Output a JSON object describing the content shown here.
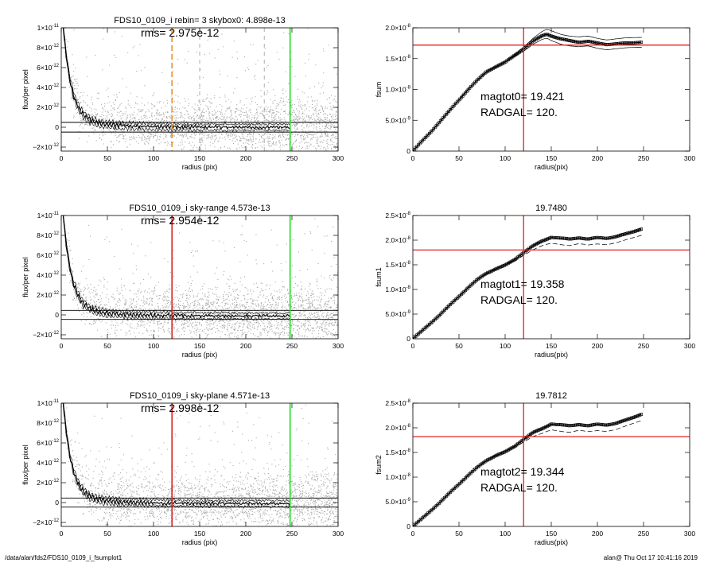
{
  "footer": {
    "left": "/data/alan/fds2/FDS10_0109_i_fsumplot1",
    "right": "alan@  Thu Oct 17 10:41:16 2019"
  },
  "colors": {
    "scatter": "#aaaaaa",
    "vline_orange": "#e8902a",
    "vline_red": "#dd2222",
    "vline_green": "#22dd22",
    "hline_red": "#dd2222",
    "gray_dashed": "#999999"
  },
  "chart_data": [
    {
      "id": "profile1",
      "type": "scatter",
      "title": "FDS10_0109_i rebin= 3    skybox0:  4.898e-13",
      "annotation": "rms= 2.975e-12",
      "xlabel": "radius (pix)",
      "ylabel": "flux/per pixel",
      "xlim": [
        0,
        300
      ],
      "ylim": [
        -2.4e-12,
        1e-11
      ],
      "xticks": [
        0,
        50,
        100,
        150,
        200,
        250,
        300
      ],
      "yticks": [
        {
          "v": 1e-11,
          "label": "1×10",
          "exp": "-11"
        },
        {
          "v": 8e-12,
          "label": "8×10",
          "exp": "-12"
        },
        {
          "v": 6e-12,
          "label": "6×10",
          "exp": "-12"
        },
        {
          "v": 4e-12,
          "label": "4×10",
          "exp": "-12"
        },
        {
          "v": 2e-12,
          "label": "2×10",
          "exp": "-12"
        },
        {
          "v": 0,
          "label": "0",
          "exp": ""
        },
        {
          "v": -2e-12,
          "label": "−2×10",
          "exp": "-12"
        }
      ],
      "vlines": [
        {
          "x": 120,
          "color": "#e8902a",
          "dash": true
        },
        {
          "x": 150,
          "color": "#999999",
          "dash": true,
          "thin": true
        },
        {
          "x": 220,
          "color": "#999999",
          "dash": true,
          "thin": true
        },
        {
          "x": 248,
          "color": "#22dd22",
          "dash": false
        }
      ],
      "hlines": [
        {
          "y": 4.898e-13,
          "color": "#000000"
        },
        {
          "y": -4.898e-13,
          "color": "#000000"
        }
      ]
    },
    {
      "id": "growth0",
      "type": "line",
      "title": "",
      "annotation_lines": [
        "magtot0=  19.421",
        "RADGAL=    120."
      ],
      "xlabel": "radius(pix)",
      "ylabel": "fsum",
      "xlim": [
        0,
        300
      ],
      "ylim": [
        0,
        2e-08
      ],
      "xticks": [
        0,
        50,
        100,
        150,
        200,
        250,
        300
      ],
      "yticks": [
        {
          "v": 2e-08,
          "label": "2.0×10",
          "exp": "-8"
        },
        {
          "v": 1.5e-08,
          "label": "1.5×10",
          "exp": "-8"
        },
        {
          "v": 1e-08,
          "label": "1.0×10",
          "exp": "-8"
        },
        {
          "v": 5e-09,
          "label": "5.0×10",
          "exp": "-9"
        },
        {
          "v": 0,
          "label": "0",
          "exp": ""
        }
      ],
      "series": [
        {
          "x": [
            0,
            10,
            20,
            30,
            40,
            50,
            60,
            70,
            80,
            90,
            100,
            110,
            120,
            130,
            140,
            145,
            150,
            160,
            170,
            180,
            190,
            200,
            210,
            220,
            230,
            240,
            248
          ],
          "values": [
            0,
            1.6e-09,
            3.2e-09,
            4.9e-09,
            6.6e-09,
            8.3e-09,
            1e-08,
            1.15e-08,
            1.29e-08,
            1.37e-08,
            1.44e-08,
            1.55e-08,
            1.66e-08,
            1.78e-08,
            1.87e-08,
            1.9e-08,
            1.87e-08,
            1.82e-08,
            1.79e-08,
            1.77e-08,
            1.78e-08,
            1.75e-08,
            1.73e-08,
            1.74e-08,
            1.75e-08,
            1.76e-08,
            1.77e-08
          ]
        }
      ],
      "vline": 120,
      "hline": 1.72e-08
    },
    {
      "id": "profile2",
      "type": "scatter",
      "title": "FDS10_0109_i sky-range  4.573e-13",
      "annotation": "rms= 2.954e-12",
      "xlabel": "radius (pix)",
      "ylabel": "flux/per pixel",
      "xlim": [
        0,
        300
      ],
      "ylim": [
        -2.4e-12,
        1e-11
      ],
      "xticks": [
        0,
        50,
        100,
        150,
        200,
        250,
        300
      ],
      "yticks": [
        {
          "v": 1e-11,
          "label": "1×10",
          "exp": "-11"
        },
        {
          "v": 8e-12,
          "label": "8×10",
          "exp": "-12"
        },
        {
          "v": 6e-12,
          "label": "6×10",
          "exp": "-12"
        },
        {
          "v": 4e-12,
          "label": "4×10",
          "exp": "-12"
        },
        {
          "v": 2e-12,
          "label": "2×10",
          "exp": "-12"
        },
        {
          "v": 0,
          "label": "0",
          "exp": ""
        },
        {
          "v": -2e-12,
          "label": "−2×10",
          "exp": "-12"
        }
      ],
      "vlines": [
        {
          "x": 120,
          "color": "#dd2222",
          "dash": false
        },
        {
          "x": 248,
          "color": "#22dd22",
          "dash": false
        }
      ],
      "hlines": [
        {
          "y": 4.573e-13,
          "color": "#000000"
        },
        {
          "y": -4.573e-13,
          "color": "#000000"
        }
      ]
    },
    {
      "id": "growth1",
      "type": "line",
      "title": "19.7480",
      "annotation_lines": [
        "magtot1=  19.358",
        "RADGAL=    120."
      ],
      "xlabel": "radius(pix)",
      "ylabel": "fsum1",
      "xlim": [
        0,
        300
      ],
      "ylim": [
        0,
        2.5e-08
      ],
      "xticks": [
        0,
        50,
        100,
        150,
        200,
        250,
        300
      ],
      "yticks": [
        {
          "v": 2.5e-08,
          "label": "2.5×10",
          "exp": "-8"
        },
        {
          "v": 2e-08,
          "label": "2.0×10",
          "exp": "-8"
        },
        {
          "v": 1.5e-08,
          "label": "1.5×10",
          "exp": "-8"
        },
        {
          "v": 1e-08,
          "label": "1.0×10",
          "exp": "-8"
        },
        {
          "v": 5e-09,
          "label": "5.0×10",
          "exp": "-9"
        },
        {
          "v": 0,
          "label": "0",
          "exp": ""
        }
      ],
      "series": [
        {
          "x": [
            0,
            10,
            20,
            30,
            40,
            50,
            60,
            70,
            80,
            90,
            100,
            110,
            120,
            130,
            140,
            150,
            160,
            170,
            180,
            190,
            200,
            210,
            220,
            230,
            240,
            248
          ],
          "values": [
            0,
            1.6e-09,
            3.3e-09,
            5e-09,
            6.8e-09,
            8.6e-09,
            1.04e-08,
            1.2e-08,
            1.33e-08,
            1.42e-08,
            1.49e-08,
            1.6e-08,
            1.75e-08,
            1.88e-08,
            1.98e-08,
            2.06e-08,
            2.04e-08,
            2.02e-08,
            2.05e-08,
            2.02e-08,
            2.05e-08,
            2.04e-08,
            2.07e-08,
            2.12e-08,
            2.18e-08,
            2.23e-08
          ]
        }
      ],
      "vline": 120,
      "hline": 1.8e-08
    },
    {
      "id": "profile3",
      "type": "scatter",
      "title": "FDS10_0109_i sky-plane  4.571e-13",
      "annotation": "rms= 2.998e-12",
      "xlabel": "radius (pix)",
      "ylabel": "flux/per pixel",
      "xlim": [
        0,
        300
      ],
      "ylim": [
        -2.4e-12,
        1e-11
      ],
      "xticks": [
        0,
        50,
        100,
        150,
        200,
        250,
        300
      ],
      "yticks": [
        {
          "v": 1e-11,
          "label": "1×10",
          "exp": "-11"
        },
        {
          "v": 8e-12,
          "label": "8×10",
          "exp": "-12"
        },
        {
          "v": 6e-12,
          "label": "6×10",
          "exp": "-12"
        },
        {
          "v": 4e-12,
          "label": "4×10",
          "exp": "-12"
        },
        {
          "v": 2e-12,
          "label": "2×10",
          "exp": "-12"
        },
        {
          "v": 0,
          "label": "0",
          "exp": ""
        },
        {
          "v": -2e-12,
          "label": "−2×10",
          "exp": "-12"
        }
      ],
      "vlines": [
        {
          "x": 120,
          "color": "#dd2222",
          "dash": false
        },
        {
          "x": 248,
          "color": "#22dd22",
          "dash": false
        }
      ],
      "hlines": [
        {
          "y": 4.571e-13,
          "color": "#000000"
        },
        {
          "y": -4.571e-13,
          "color": "#000000"
        }
      ]
    },
    {
      "id": "growth2",
      "type": "line",
      "title": "19.7812",
      "annotation_lines": [
        "magtot2=  19.344",
        "RADGAL=    120."
      ],
      "xlabel": "radius(pix)",
      "ylabel": "fsum2",
      "xlim": [
        0,
        300
      ],
      "ylim": [
        0,
        2.5e-08
      ],
      "xticks": [
        0,
        50,
        100,
        150,
        200,
        250,
        300
      ],
      "yticks": [
        {
          "v": 2.5e-08,
          "label": "2.5×10",
          "exp": "-8"
        },
        {
          "v": 2e-08,
          "label": "2.0×10",
          "exp": "-8"
        },
        {
          "v": 1.5e-08,
          "label": "1.5×10",
          "exp": "-8"
        },
        {
          "v": 1e-08,
          "label": "1.0×10",
          "exp": "-8"
        },
        {
          "v": 5e-09,
          "label": "5.0×10",
          "exp": "-9"
        },
        {
          "v": 0,
          "label": "0",
          "exp": ""
        }
      ],
      "series": [
        {
          "x": [
            0,
            10,
            20,
            30,
            40,
            50,
            60,
            70,
            80,
            90,
            100,
            110,
            120,
            130,
            140,
            150,
            160,
            170,
            180,
            190,
            200,
            210,
            220,
            230,
            240,
            248
          ],
          "values": [
            0,
            1.6e-09,
            3.3e-09,
            5e-09,
            6.8e-09,
            8.6e-09,
            1.04e-08,
            1.2e-08,
            1.34e-08,
            1.44e-08,
            1.51e-08,
            1.62e-08,
            1.77e-08,
            1.9e-08,
            1.98e-08,
            2.08e-08,
            2.06e-08,
            2.04e-08,
            2.07e-08,
            2.04e-08,
            2.07e-08,
            2.06e-08,
            2.09e-08,
            2.15e-08,
            2.22e-08,
            2.28e-08
          ]
        }
      ],
      "vline": 120,
      "hline": 1.82e-08
    }
  ]
}
